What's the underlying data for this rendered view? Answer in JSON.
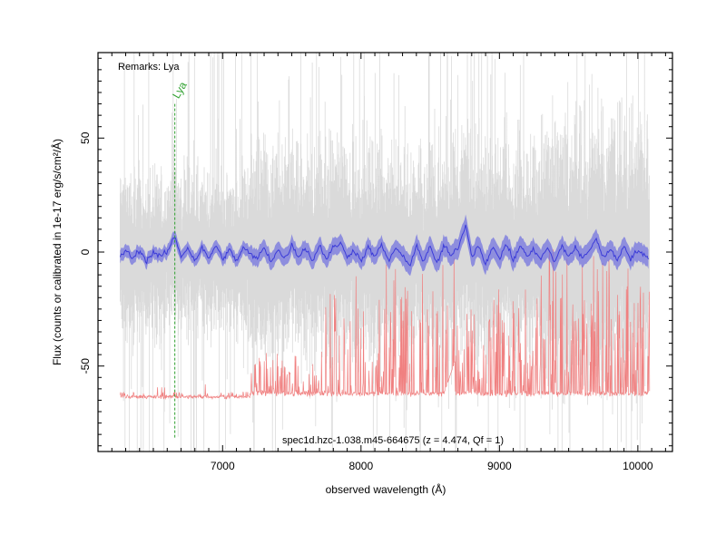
{
  "chart_data": {
    "type": "line",
    "title": "spec1d.hzc-1.038.m45-664675 (z = 4.474, Qf = 1)",
    "remarks": "Remarks: Lya",
    "xlabel": "observed wavelength (Å)",
    "ylabel": "Flux (counts or calibrated in 1e-17 erg/s/cm²/Å)",
    "xlim": [
      6100,
      10250
    ],
    "ylim": [
      -87.5,
      87.5
    ],
    "x_ticks": [
      7000,
      8000,
      9000,
      10000
    ],
    "y_ticks": [
      -50,
      0,
      50
    ],
    "grid": false,
    "colors": {
      "raw_spectrum": "#d3d3d3",
      "smoothed_spectrum": "#3b3bd8",
      "error_band": "#6d6de0",
      "noise_spectrum": "#f08080",
      "line_marker": "#2fa02f"
    },
    "line_markers": [
      {
        "label": "Lya",
        "x": 6655
      }
    ],
    "series": [
      {
        "values": [
          [
            6260,
            -2
          ],
          [
            6300,
            1
          ],
          [
            6350,
            -3
          ],
          [
            6400,
            1
          ],
          [
            6450,
            -4
          ],
          [
            6500,
            0
          ],
          [
            6550,
            -2
          ],
          [
            6600,
            0
          ],
          [
            6655,
            7
          ],
          [
            6700,
            -2
          ],
          [
            6750,
            2
          ],
          [
            6800,
            -4
          ],
          [
            6850,
            2
          ],
          [
            6900,
            -3
          ],
          [
            6950,
            3
          ],
          [
            7000,
            -3
          ],
          [
            7050,
            1
          ],
          [
            7100,
            -4
          ],
          [
            7150,
            2
          ],
          [
            7200,
            -1
          ],
          [
            7250,
            -3
          ],
          [
            7300,
            2
          ],
          [
            7350,
            -4
          ],
          [
            7400,
            1
          ],
          [
            7450,
            -3
          ],
          [
            7500,
            3
          ],
          [
            7550,
            -2
          ],
          [
            7600,
            2
          ],
          [
            7650,
            -4
          ],
          [
            7700,
            3
          ],
          [
            7750,
            -3
          ],
          [
            7800,
            2
          ],
          [
            7850,
            4
          ],
          [
            7900,
            -2
          ],
          [
            7950,
            1
          ],
          [
            8000,
            -4
          ],
          [
            8050,
            2
          ],
          [
            8100,
            -2
          ],
          [
            8150,
            3
          ],
          [
            8200,
            -4
          ],
          [
            8250,
            2
          ],
          [
            8300,
            -2
          ],
          [
            8350,
            -6
          ],
          [
            8400,
            3
          ],
          [
            8450,
            -4
          ],
          [
            8500,
            2
          ],
          [
            8550,
            -5
          ],
          [
            8600,
            3
          ],
          [
            8650,
            -2
          ],
          [
            8700,
            2
          ],
          [
            8760,
            12
          ],
          [
            8800,
            -2
          ],
          [
            8850,
            3
          ],
          [
            8900,
            -5
          ],
          [
            8950,
            2
          ],
          [
            9000,
            -3
          ],
          [
            9050,
            4
          ],
          [
            9100,
            -4
          ],
          [
            9150,
            3
          ],
          [
            9200,
            -2
          ],
          [
            9250,
            1
          ],
          [
            9300,
            -3
          ],
          [
            9350,
            2
          ],
          [
            9400,
            -5
          ],
          [
            9450,
            3
          ],
          [
            9500,
            -2
          ],
          [
            9550,
            2
          ],
          [
            9600,
            -3
          ],
          [
            9650,
            1
          ],
          [
            9700,
            6
          ],
          [
            9750,
            -3
          ],
          [
            9800,
            2
          ],
          [
            9850,
            -4
          ],
          [
            9900,
            3
          ],
          [
            9950,
            -3
          ],
          [
            10000,
            1
          ],
          [
            10050,
            -2
          ],
          [
            10080,
            -3
          ]
        ]
      }
    ]
  }
}
